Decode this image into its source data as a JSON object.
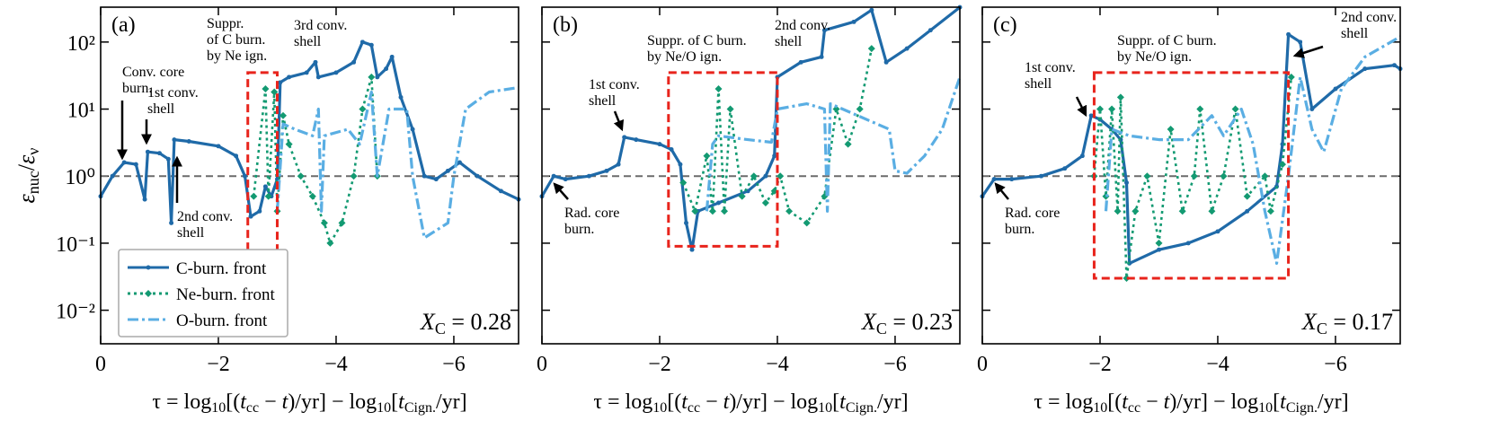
{
  "chart_data": [
    {
      "type": "line",
      "panel_label": "(a)",
      "ylabel": [
        "ε",
        "nuc",
        "/",
        "ε",
        "ν"
      ],
      "xlabel": [
        "τ = log",
        "10",
        "[(",
        "t",
        "cc",
        " − ",
        "t",
        ")/yr] − log",
        "10",
        "[",
        "t",
        "Cign.",
        "/yr]"
      ],
      "xlim": [
        0,
        -7.1
      ],
      "xticks": [
        0,
        {
          "value": -2,
          "label": "−2"
        },
        {
          "value": -4,
          "label": "−4"
        },
        {
          "value": -6,
          "label": "−6"
        }
      ],
      "ylim": [
        0.00316,
        331
      ],
      "log_y": true,
      "yticks": [
        {
          "value": 0.01,
          "label": "10⁻²"
        },
        {
          "value": 0.1,
          "label": "10⁻¹"
        },
        {
          "value": 1,
          "label": "10⁰"
        },
        {
          "value": 10,
          "label": "10¹"
        },
        {
          "value": 100,
          "label": "10²"
        }
      ],
      "reference_line": {
        "y": 1,
        "color": "#6b6b6b"
      },
      "xc_label": [
        "X",
        "C",
        " = 0.28"
      ],
      "highlight": {
        "x": [
          -2.5,
          -3.0
        ],
        "y": [
          0.075,
          35
        ],
        "color": "#e8241c",
        "lines": [
          "Suppr.",
          "of C burn.",
          "by Ne ign."
        ]
      },
      "annotations": [
        {
          "lines": [
            "Conv. core",
            "burn."
          ]
        },
        {
          "lines": [
            "1st conv.",
            "shell"
          ]
        },
        {
          "lines": [
            "2nd conv.",
            "shell"
          ]
        },
        {
          "lines": [
            "3rd conv.",
            "shell"
          ]
        }
      ],
      "legend": "lower left",
      "series": [
        {
          "name": "C-burn. front",
          "color": "#1f6aa8",
          "style": "solid",
          "marker": "o",
          "x": [
            0,
            -0.2,
            -0.4,
            -0.6,
            -0.75,
            -0.8,
            -1.0,
            -1.15,
            -1.2,
            -1.25,
            -1.5,
            -2.0,
            -2.3,
            -2.45,
            -2.55,
            -2.7,
            -2.8,
            -2.9,
            -3.0,
            -3.05,
            -3.2,
            -3.5,
            -3.65,
            -3.7,
            -4.0,
            -4.3,
            -4.45,
            -4.6,
            -4.7,
            -4.85,
            -4.95,
            -5.1,
            -5.3,
            -5.5,
            -5.7,
            -5.9,
            -6.1,
            -6.4,
            -6.8,
            -7.1
          ],
          "values": [
            0.5,
            1.0,
            1.6,
            1.5,
            0.45,
            2.3,
            2.2,
            1.8,
            0.2,
            3.5,
            3.3,
            2.8,
            2.0,
            1.0,
            0.25,
            0.3,
            0.7,
            0.5,
            0.9,
            25,
            30,
            35,
            50,
            30,
            35,
            50,
            100,
            90,
            30,
            40,
            60,
            15,
            5,
            1.0,
            0.9,
            1.2,
            1.6,
            1.0,
            0.6,
            0.45
          ]
        },
        {
          "name": "Ne-burn. front",
          "color": "#139a72",
          "style": "dotted",
          "marker": "d",
          "x": [
            -2.6,
            -2.8,
            -2.85,
            -2.95,
            -3.0,
            -3.1,
            -3.2,
            -3.4,
            -3.6,
            -3.8,
            -3.9,
            -4.1,
            -4.3,
            -4.45,
            -4.6,
            -4.7
          ],
          "values": [
            0.5,
            20,
            0.5,
            18,
            0.3,
            8,
            3,
            1,
            0.5,
            0.2,
            0.1,
            0.2,
            1,
            10,
            30,
            1
          ]
        },
        {
          "name": "O-burn. front",
          "color": "#5aaee3",
          "style": "dashdot",
          "marker": null,
          "x": [
            -3.0,
            -3.1,
            -3.3,
            -3.6,
            -3.7,
            -3.75,
            -3.8,
            -4.2,
            -4.4,
            -4.6,
            -4.7,
            -4.9,
            -5.2,
            -5.3,
            -5.5,
            -5.9,
            -6.0,
            -6.2,
            -6.6,
            -7.1
          ],
          "values": [
            0.3,
            6,
            5,
            4,
            10,
            0.3,
            4,
            5,
            3,
            18,
            1.0,
            10,
            10,
            1,
            0.12,
            0.2,
            1,
            10,
            18,
            21
          ]
        }
      ]
    },
    {
      "type": "line",
      "panel_label": "(b)",
      "xlabel": [
        "τ = log",
        "10",
        "[(",
        "t",
        "cc",
        " − ",
        "t",
        ")/yr] − log",
        "10",
        "[",
        "t",
        "Cign.",
        "/yr]"
      ],
      "xlim": [
        0,
        -7.1
      ],
      "xticks": [
        0,
        {
          "value": -2,
          "label": "−2"
        },
        {
          "value": -4,
          "label": "−4"
        },
        {
          "value": -6,
          "label": "−6"
        }
      ],
      "ylim": [
        0.00316,
        331
      ],
      "log_y": true,
      "yticks": [
        0.01,
        0.1,
        1,
        10,
        100
      ],
      "reference_line": {
        "y": 1,
        "color": "#6b6b6b"
      },
      "xc_label": [
        "X",
        "C",
        " = 0.23"
      ],
      "highlight": {
        "x": [
          -2.15,
          -4.0
        ],
        "y": [
          0.09,
          35
        ],
        "color": "#e8241c",
        "lines": [
          "Suppr. of C burn.",
          "by Ne/O ign."
        ]
      },
      "annotations": [
        {
          "lines": [
            "1st conv.",
            "shell"
          ]
        },
        {
          "lines": [
            "Rad. core",
            "burn."
          ]
        },
        {
          "lines": [
            "2nd conv.",
            "shell"
          ]
        }
      ],
      "series": [
        {
          "color": "#1f6aa8",
          "style": "solid",
          "marker": "o",
          "x": [
            0,
            -0.2,
            -0.4,
            -0.8,
            -1.1,
            -1.3,
            -1.4,
            -1.6,
            -2.0,
            -2.2,
            -2.35,
            -2.45,
            -2.55,
            -2.65,
            -3.0,
            -3.5,
            -3.8,
            -3.95,
            -4.0,
            -4.4,
            -4.75,
            -4.8,
            -5.3,
            -5.6,
            -5.85,
            -6.2,
            -6.6,
            -7.1
          ],
          "values": [
            0.5,
            1.0,
            0.9,
            1.0,
            1.2,
            1.5,
            3.8,
            3.5,
            3.0,
            2.5,
            1.5,
            0.2,
            0.08,
            0.3,
            0.4,
            0.6,
            1.0,
            2,
            30,
            50,
            60,
            150,
            200,
            300,
            50,
            80,
            150,
            330
          ]
        },
        {
          "color": "#139a72",
          "style": "dotted",
          "marker": "d",
          "x": [
            -2.4,
            -2.6,
            -2.8,
            -2.9,
            -3.0,
            -3.1,
            -3.2,
            -3.4,
            -3.6,
            -3.8,
            -3.95,
            -4.05,
            -4.2,
            -4.5,
            -4.8,
            -5.0,
            -5.2,
            -5.4,
            -5.6
          ],
          "values": [
            0.8,
            0.3,
            2,
            0.3,
            20,
            0.3,
            10,
            0.5,
            1,
            0.4,
            0.6,
            1,
            0.3,
            0.2,
            0.5,
            10,
            3,
            10,
            80
          ]
        },
        {
          "color": "#5aaee3",
          "style": "dashdot",
          "marker": null,
          "x": [
            -2.8,
            -2.9,
            -3.0,
            -3.5,
            -3.9,
            -4.0,
            -4.5,
            -4.8,
            -4.85,
            -4.9,
            -5.9,
            -6.0,
            -6.2,
            -6.5,
            -6.8,
            -7.1
          ],
          "values": [
            0.3,
            3,
            4,
            3.5,
            3.2,
            10,
            12,
            10,
            0.3,
            12,
            5,
            1.2,
            1.1,
            2,
            5,
            30
          ]
        }
      ]
    },
    {
      "type": "line",
      "panel_label": "(c)",
      "xlabel": [
        "τ = log",
        "10",
        "[(",
        "t",
        "cc",
        " − ",
        "t",
        ")/yr] − log",
        "10",
        "[",
        "t",
        "Cign.",
        "/yr]"
      ],
      "xlim": [
        0,
        -7.1
      ],
      "xticks": [
        0,
        {
          "value": -2,
          "label": "−2"
        },
        {
          "value": -4,
          "label": "−4"
        },
        {
          "value": -6,
          "label": "−6"
        }
      ],
      "ylim": [
        0.00316,
        331
      ],
      "log_y": true,
      "yticks": [
        0.01,
        0.1,
        1,
        10,
        100
      ],
      "reference_line": {
        "y": 1,
        "color": "#6b6b6b"
      },
      "xc_label": [
        "X",
        "C",
        " = 0.17"
      ],
      "highlight": {
        "x": [
          -1.9,
          -5.2
        ],
        "y": [
          0.03,
          35
        ],
        "color": "#e8241c",
        "lines": [
          "Suppr. of C burn.",
          "by Ne/O ign."
        ]
      },
      "annotations": [
        {
          "lines": [
            "1st conv.",
            "shell"
          ]
        },
        {
          "lines": [
            "Rad. core",
            "burn."
          ]
        },
        {
          "lines": [
            "2nd conv.",
            "shell"
          ]
        }
      ],
      "series": [
        {
          "color": "#1f6aa8",
          "style": "solid",
          "marker": "o",
          "x": [
            0,
            -0.2,
            -0.5,
            -1.0,
            -1.4,
            -1.7,
            -1.85,
            -2.0,
            -2.2,
            -2.35,
            -2.45,
            -2.5,
            -3.0,
            -3.5,
            -4.0,
            -4.5,
            -5.0,
            -5.1,
            -5.2,
            -5.4,
            -5.6,
            -6.0,
            -6.5,
            -7.0,
            -7.1
          ],
          "values": [
            0.5,
            0.9,
            0.9,
            1.0,
            1.3,
            2,
            8,
            7,
            5,
            3.5,
            0.8,
            0.05,
            0.08,
            0.1,
            0.15,
            0.3,
            0.7,
            3,
            130,
            100,
            10,
            20,
            40,
            45,
            40
          ]
        },
        {
          "color": "#139a72",
          "style": "dotted",
          "marker": "d",
          "x": [
            -1.9,
            -2.0,
            -2.1,
            -2.2,
            -2.3,
            -2.35,
            -2.45,
            -2.6,
            -2.8,
            -3.0,
            -3.2,
            -3.4,
            -3.6,
            -3.7,
            -3.9,
            -4.1,
            -4.3,
            -4.5,
            -4.8,
            -4.9,
            -5.1,
            -5.25
          ],
          "values": [
            1,
            10,
            0.5,
            10,
            0.3,
            15,
            0.03,
            0.3,
            1,
            0.1,
            5,
            0.3,
            1,
            10,
            0.3,
            1,
            10,
            0.5,
            1,
            0.3,
            1.5,
            30
          ]
        },
        {
          "color": "#5aaee3",
          "style": "dashdot",
          "marker": null,
          "x": [
            -2.1,
            -2.2,
            -2.5,
            -3.0,
            -3.5,
            -3.9,
            -4.1,
            -4.4,
            -4.6,
            -4.8,
            -5.0,
            -5.2,
            -5.4,
            -5.6,
            -5.8,
            -6.1,
            -6.5,
            -7.1
          ],
          "values": [
            0.3,
            5,
            4,
            3.5,
            3.5,
            8,
            4,
            10,
            3,
            0.3,
            0.05,
            1,
            30,
            5,
            2.3,
            20,
            60,
            120
          ]
        }
      ]
    }
  ]
}
